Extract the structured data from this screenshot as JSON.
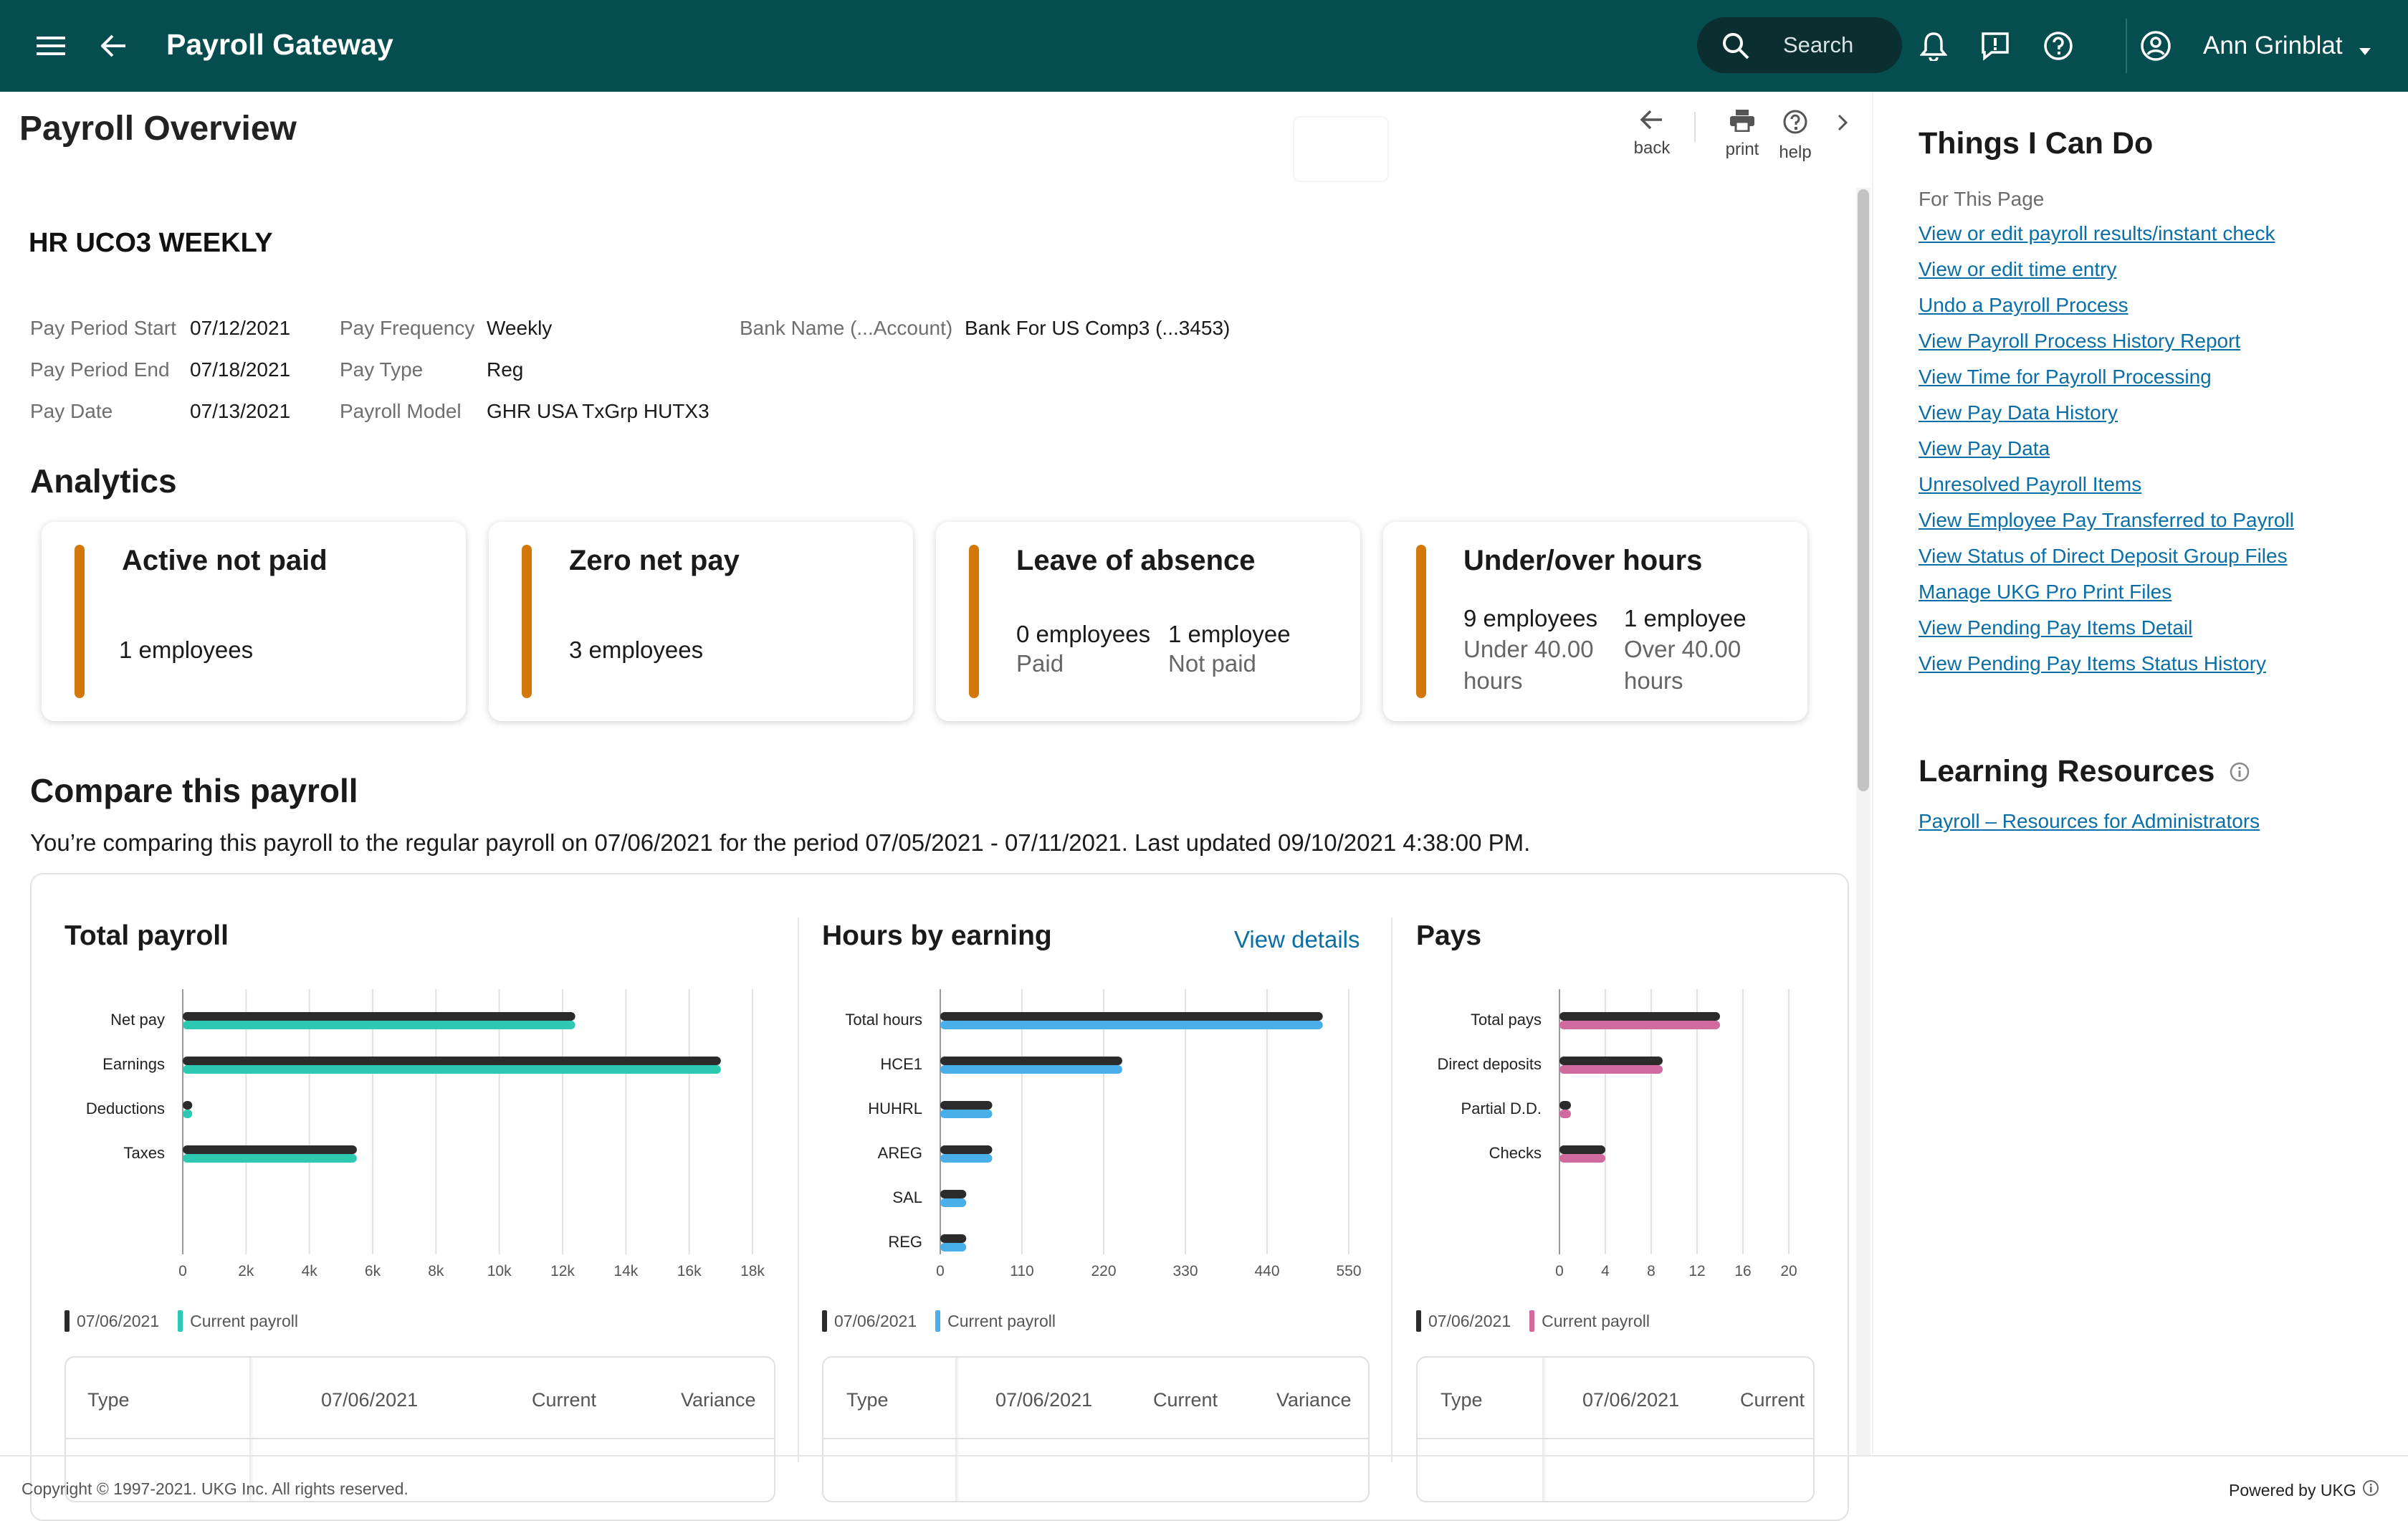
{
  "header": {
    "app_title": "Payroll Gateway",
    "search_label": "Search",
    "user_name": "Ann Grinblat"
  },
  "page": {
    "title": "Payroll Overview",
    "tools": {
      "back": "back",
      "print": "print",
      "help": "help"
    }
  },
  "group": {
    "name": "HR UCO3 WEEKLY",
    "fields": {
      "pay_period_start_label": "Pay Period Start",
      "pay_period_start": "07/12/2021",
      "pay_period_end_label": "Pay Period End",
      "pay_period_end": "07/18/2021",
      "pay_date_label": "Pay Date",
      "pay_date": "07/13/2021",
      "pay_frequency_label": "Pay Frequency",
      "pay_frequency": "Weekly",
      "pay_type_label": "Pay Type",
      "pay_type": "Reg",
      "payroll_model_label": "Payroll Model",
      "payroll_model": "GHR USA TxGrp HUTX3",
      "bank_label": "Bank Name (...Account)",
      "bank": "Bank For US Comp3 (...3453)"
    }
  },
  "analytics": {
    "title": "Analytics",
    "accent": "#d4770b",
    "cards": [
      {
        "title": "Active not paid",
        "value": "1 employees"
      },
      {
        "title": "Zero net pay",
        "value": "3 employees"
      },
      {
        "title": "Leave of absence",
        "col1_value": "0 employees",
        "col1_sub": "Paid",
        "col2_value": "1 employee",
        "col2_sub": "Not paid"
      },
      {
        "title": "Under/over hours",
        "col1_value": "9 employees",
        "col1_sub": "Under 40.00 hours",
        "col2_value": "1 employee",
        "col2_sub": "Over 40.00 hours"
      }
    ]
  },
  "compare": {
    "title": "Compare this payroll",
    "description": "You’re comparing this payroll to the regular payroll on 07/06/2021 for the period 07/05/2021 - 07/11/2021. Last updated 09/10/2021 4:38:00 PM.",
    "view_details": "View details",
    "table_headers": {
      "type": "Type",
      "prior": "07/06/2021",
      "current": "Current",
      "variance": "Variance"
    }
  },
  "chart_data": [
    {
      "type": "bar",
      "orientation": "horizontal",
      "title": "Total payroll",
      "categories": [
        "Net pay",
        "Earnings",
        "Deductions",
        "Taxes"
      ],
      "series": [
        {
          "name": "07/06/2021",
          "color": "#2b2b2b",
          "values": [
            12400,
            17000,
            300,
            5500
          ]
        },
        {
          "name": "Current payroll",
          "color": "#2ec9b3",
          "values": [
            12400,
            17000,
            300,
            5500
          ]
        }
      ],
      "xlim": [
        0,
        18000
      ],
      "ticks": [
        0,
        2000,
        4000,
        6000,
        8000,
        10000,
        12000,
        14000,
        16000,
        18000
      ],
      "tick_labels": [
        "0",
        "2k",
        "4k",
        "6k",
        "8k",
        "10k",
        "12k",
        "14k",
        "16k",
        "18k"
      ],
      "grid": true,
      "legend": "bottom-left"
    },
    {
      "type": "bar",
      "orientation": "horizontal",
      "title": "Hours by earning",
      "categories": [
        "Total hours",
        "HCE1",
        "HUHRL",
        "AREG",
        "SAL",
        "REG"
      ],
      "series": [
        {
          "name": "07/06/2021",
          "color": "#2b2b2b",
          "values": [
            515,
            245,
            70,
            70,
            35,
            35
          ]
        },
        {
          "name": "Current payroll",
          "color": "#4aaee8",
          "values": [
            515,
            245,
            70,
            70,
            35,
            35
          ]
        }
      ],
      "xlim": [
        0,
        550
      ],
      "ticks": [
        0,
        110,
        220,
        330,
        440,
        550
      ],
      "tick_labels": [
        "0",
        "110",
        "220",
        "330",
        "440",
        "550"
      ],
      "grid": true,
      "legend": "bottom-left"
    },
    {
      "type": "bar",
      "orientation": "horizontal",
      "title": "Pays",
      "categories": [
        "Total pays",
        "Direct deposits",
        "Partial D.D.",
        "Checks"
      ],
      "series": [
        {
          "name": "07/06/2021",
          "color": "#2b2b2b",
          "values": [
            14,
            9,
            1,
            4
          ]
        },
        {
          "name": "Current payroll",
          "color": "#d06a9f",
          "values": [
            14,
            9,
            1,
            4
          ]
        }
      ],
      "xlim": [
        0,
        20
      ],
      "ticks": [
        0,
        4,
        8,
        12,
        16,
        20
      ],
      "tick_labels": [
        "0",
        "4",
        "8",
        "12",
        "16",
        "20"
      ],
      "grid": true,
      "legend": "bottom-left"
    }
  ],
  "right_panel": {
    "title": "Things I Can Do",
    "subtitle": "For This Page",
    "links": [
      "View or edit payroll results/instant check",
      "View or edit time entry",
      "Undo a Payroll Process",
      "View Payroll Process History Report",
      "View Time for Payroll Processing",
      "View Pay Data History",
      "View Pay Data",
      "Unresolved Payroll Items",
      "View Employee Pay Transferred to Payroll",
      "View Status of Direct Deposit Group Files",
      "Manage UKG Pro Print Files",
      "View Pending Pay Items Detail",
      "View Pending Pay Items Status History"
    ],
    "learning_title": "Learning Resources",
    "learning_links": [
      "Payroll – Resources for Administrators"
    ]
  },
  "footer": {
    "copyright": "Copyright © 1997-2021. UKG Inc. All rights reserved.",
    "powered_by": "Powered by UKG"
  }
}
